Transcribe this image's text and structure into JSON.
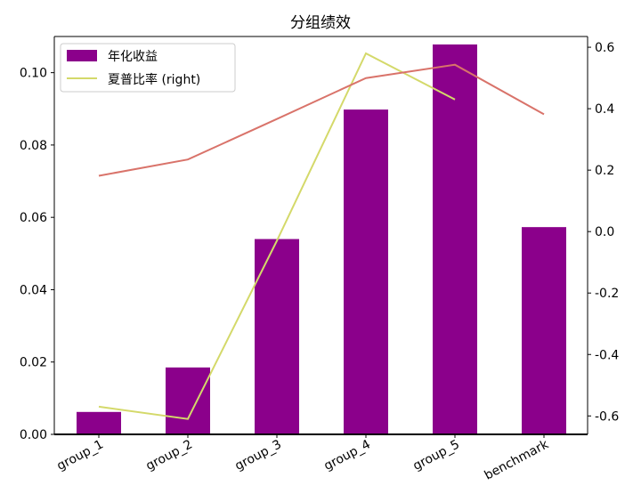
{
  "chart_data": {
    "type": "bar",
    "title": "分组绩效",
    "categories": [
      "group_1",
      "group_2",
      "group_3",
      "group_4",
      "group_5",
      "benchmark"
    ],
    "series": [
      {
        "name": "年化收益",
        "type": "bar",
        "axis": "left",
        "color": "#8b008b",
        "values": [
          0.0062,
          0.0185,
          0.054,
          0.0898,
          0.1078,
          0.0573
        ]
      },
      {
        "name": "夏普比率 (right)",
        "type": "line",
        "axis": "right",
        "color": "#d4d96a",
        "values": [
          -0.57,
          -0.61,
          -0.03,
          0.58,
          0.43,
          null
        ]
      },
      {
        "type": "line",
        "axis": "left",
        "color": "#d9736a",
        "values": [
          0.0715,
          0.076,
          0.0872,
          0.0985,
          0.1022,
          0.0885
        ]
      }
    ],
    "ylim_left": [
      0,
      0.11
    ],
    "yticks_left": [
      "0.00",
      "0.02",
      "0.04",
      "0.06",
      "0.08",
      "0.10"
    ],
    "ylim_right": [
      -0.66,
      0.635
    ],
    "yticks_right": [
      "-0.6",
      "-0.4",
      "-0.2",
      "0.0",
      "0.2",
      "0.4",
      "0.6"
    ],
    "legend_position": "top-left",
    "grid": false
  }
}
